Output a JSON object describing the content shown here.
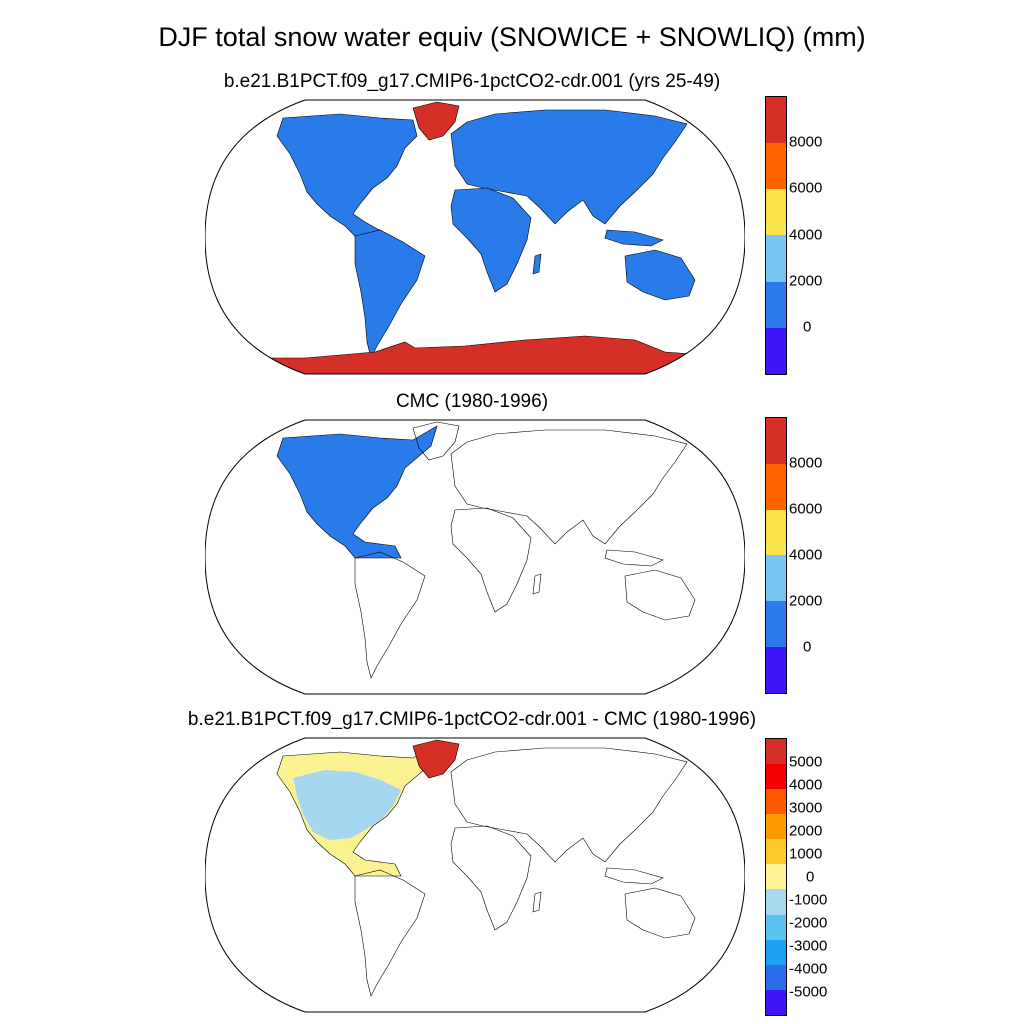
{
  "title": "DJF total snow water equiv (SNOWICE + SNOWLIQ) (mm)",
  "colors": {
    "land_fill": "#2a7bea",
    "greenland": "#d62f27",
    "antarctica": "#d62f27",
    "diff_pos": "#fbf391",
    "diff_neg": "#a6d6f0"
  },
  "panels": [
    {
      "title": "b.e21.B1PCT.f09_g17.CMIP6-1pctCO2-cdr.001 (yrs 25-49)",
      "colorbar": {
        "colors": [
          "#d62f27",
          "#ff6400",
          "#f9e44b",
          "#77c6f1",
          "#2b7bea",
          "#3f15f5"
        ],
        "labels": [
          "8000",
          "6000",
          "4000",
          "2000",
          "0"
        ]
      }
    },
    {
      "title": "CMC (1980-1996)",
      "colorbar": {
        "colors": [
          "#d62f27",
          "#ff6400",
          "#f9e44b",
          "#77c6f1",
          "#2b7bea",
          "#3f15f5"
        ],
        "labels": [
          "8000",
          "6000",
          "4000",
          "2000",
          "0"
        ]
      }
    },
    {
      "title": "b.e21.B1PCT.f09_g17.CMIP6-1pctCO2-cdr.001 - CMC (1980-1996)",
      "colorbar": {
        "colors": [
          "#d62f27",
          "#f00000",
          "#ff5a00",
          "#ff9a00",
          "#ffc92e",
          "#fdf495",
          "#a9d9f0",
          "#58c3ee",
          "#1ea0f5",
          "#2b6ce8",
          "#3f15f5"
        ],
        "labels": [
          "5000",
          "4000",
          "3000",
          "2000",
          "1000",
          "0",
          "-1000",
          "-2000",
          "-3000",
          "-4000",
          "-5000"
        ]
      }
    }
  ]
}
